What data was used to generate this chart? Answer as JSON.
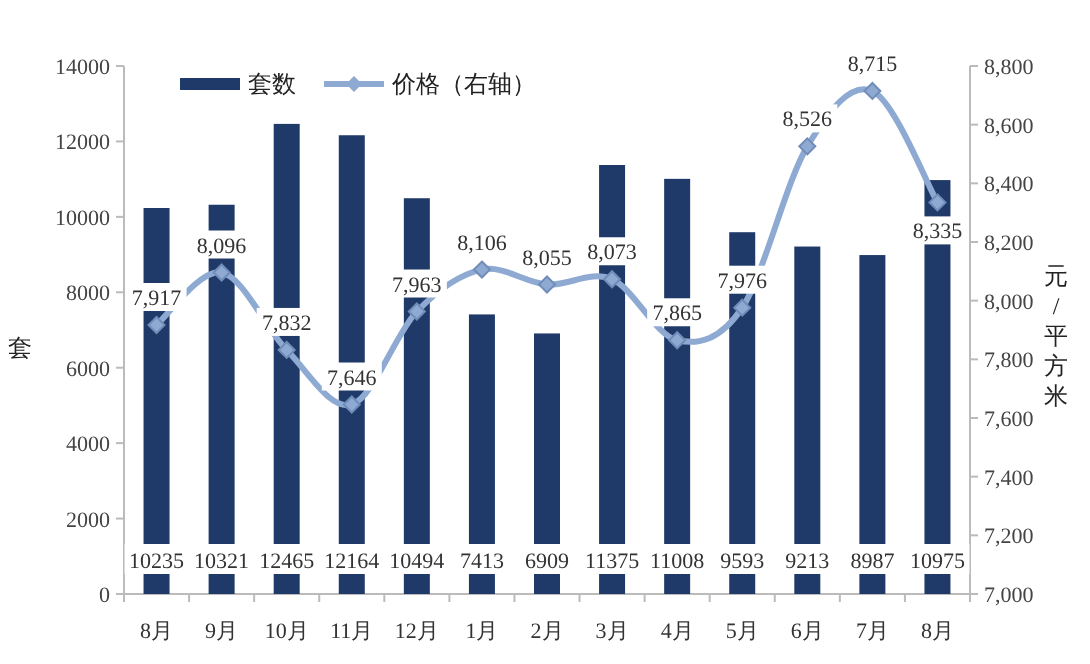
{
  "chart_data": {
    "type": "bar",
    "categories": [
      "8月",
      "9月",
      "10月",
      "11月",
      "12月",
      "1月",
      "2月",
      "3月",
      "4月",
      "5月",
      "6月",
      "7月",
      "8月"
    ],
    "ylabel": "套",
    "y2label": "元/平方米",
    "legend": "top",
    "grid": false,
    "data_labels": true,
    "ylim": [
      0,
      14000
    ],
    "yticks": [
      0,
      2000,
      4000,
      6000,
      8000,
      10000,
      12000,
      14000
    ],
    "y2lim": [
      7000,
      8800
    ],
    "y2ticks": [
      {
        "value": 7000,
        "label": "7,000"
      },
      {
        "value": 7200,
        "label": "7,200"
      },
      {
        "value": 7400,
        "label": "7,400"
      },
      {
        "value": 7600,
        "label": "7,600"
      },
      {
        "value": 7800,
        "label": "7,800"
      },
      {
        "value": 8000,
        "label": "8,000"
      },
      {
        "value": 8200,
        "label": "8,200"
      },
      {
        "value": 8400,
        "label": "8,400"
      },
      {
        "value": 8600,
        "label": "8,600"
      },
      {
        "value": 8800,
        "label": "8,800"
      }
    ],
    "series": [
      {
        "name": "套数",
        "color": "#1f3a68",
        "values": [
          10235,
          10321,
          12465,
          12164,
          10494,
          7413,
          6909,
          11375,
          11008,
          9593,
          9213,
          8987,
          10975
        ]
      },
      {
        "name": "价格（右轴）",
        "type": "line",
        "axis": "y2",
        "color": "#8eaad2",
        "marker": "diamond",
        "line_style": "solid",
        "values": [
          7917,
          8096,
          7832,
          7646,
          7963,
          8106,
          8055,
          8073,
          7865,
          7976,
          8526,
          8715,
          8335
        ],
        "value_labels": [
          "7,917",
          "8,096",
          "7,832",
          "7,646",
          "7,963",
          "8,106",
          "8,055",
          "8,073",
          "7,865",
          "7,976",
          "8,526",
          "8,715",
          "8,335"
        ]
      }
    ]
  }
}
